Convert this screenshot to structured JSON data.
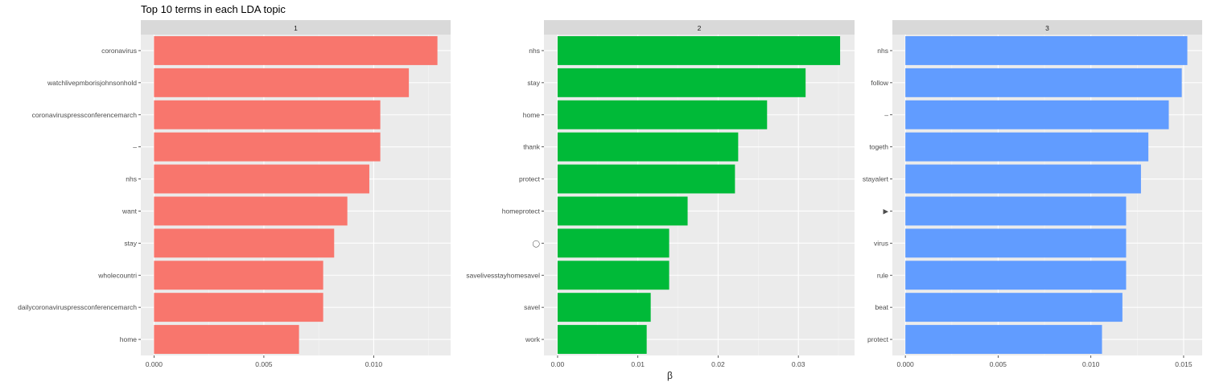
{
  "title": "Top 10 terms in each LDA topic",
  "xlabel": "β",
  "chart_data": [
    {
      "type": "bar",
      "orientation": "horizontal",
      "facet_label": "1",
      "color": "#F8766D",
      "categories": [
        "coronavirus",
        "watchlivepmborisjohnsonhold",
        "coronaviruspressconferencemarch",
        "–",
        "nhs",
        "want",
        "stay",
        "wholecountri",
        "dailycoronaviruspressconferencemarch",
        "home"
      ],
      "values": [
        0.0129,
        0.0116,
        0.0103,
        0.0103,
        0.0098,
        0.0088,
        0.0082,
        0.0077,
        0.0077,
        0.0066
      ],
      "xlim": [
        -0.0006,
        0.0135
      ],
      "ticks": [
        0.0,
        0.005,
        0.01
      ],
      "tick_labels": [
        "0.000",
        "0.005",
        "0.010"
      ]
    },
    {
      "type": "bar",
      "orientation": "horizontal",
      "facet_label": "2",
      "color": "#00BA38",
      "categories": [
        "nhs",
        "stay",
        "home",
        "thank",
        "protect",
        "homeprotect",
        "◯",
        "savelivesstayhomesavel",
        "savel",
        "work"
      ],
      "values": [
        0.0352,
        0.0309,
        0.0261,
        0.0225,
        0.0221,
        0.0162,
        0.0139,
        0.0139,
        0.0116,
        0.0111
      ],
      "xlim": [
        -0.0017,
        0.037
      ],
      "ticks": [
        0.0,
        0.01,
        0.02,
        0.03
      ],
      "tick_labels": [
        "0.00",
        "0.01",
        "0.02",
        "0.03"
      ]
    },
    {
      "type": "bar",
      "orientation": "horizontal",
      "facet_label": "3",
      "color": "#619CFF",
      "categories": [
        "nhs",
        "follow",
        "–",
        "togeth",
        "stayalert",
        "▶",
        "virus",
        "rule",
        "beat",
        "protect"
      ],
      "values": [
        0.0152,
        0.0149,
        0.0142,
        0.0131,
        0.0127,
        0.0119,
        0.0119,
        0.0119,
        0.0117,
        0.0106
      ],
      "xlim": [
        -0.0007,
        0.016
      ],
      "ticks": [
        0.0,
        0.005,
        0.01,
        0.015
      ],
      "tick_labels": [
        "0.000",
        "0.005",
        "0.010",
        "0.015"
      ]
    }
  ]
}
